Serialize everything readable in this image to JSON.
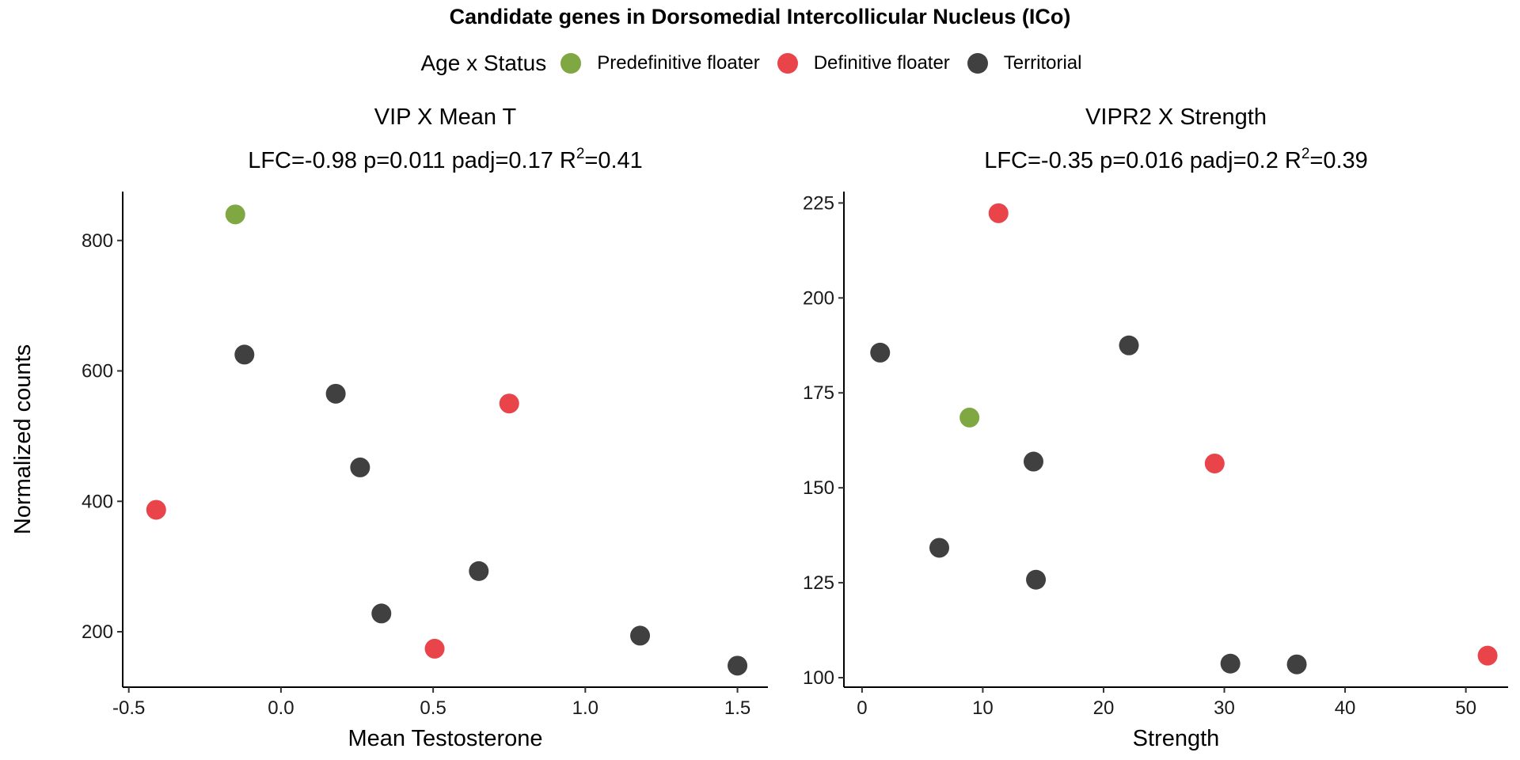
{
  "title": "Candidate genes in Dorsomedial Intercollicular Nucleus (ICo)",
  "legend": {
    "title": "Age x Status",
    "position": "top",
    "items": [
      {
        "label": "Predefinitive floater",
        "color": "#7FA843"
      },
      {
        "label": "Definitive floater",
        "color": "#E8444A"
      },
      {
        "label": "Territorial",
        "color": "#404040"
      }
    ]
  },
  "chart_data": [
    {
      "type": "scatter",
      "title": "VIP X Mean T",
      "subtitle_parts": [
        "LFC=-0.98 p=0.011 padj=0.17 R",
        "2",
        "=0.41"
      ],
      "xlabel": "Mean Testosterone",
      "ylabel": "Normalized counts",
      "xlim": [
        -0.52,
        1.6
      ],
      "ylim": [
        115,
        875
      ],
      "xticks": [
        -0.5,
        0.0,
        0.5,
        1.0,
        1.5
      ],
      "xtick_labels": [
        "-0.5",
        "0.0",
        "0.5",
        "1.0",
        "1.5"
      ],
      "yticks": [
        200,
        400,
        600,
        800
      ],
      "ytick_labels": [
        "200",
        "400",
        "600",
        "800"
      ],
      "grid": false,
      "points": [
        {
          "x": -0.15,
          "y": 840,
          "group": "Predefinitive floater"
        },
        {
          "x": -0.12,
          "y": 625,
          "group": "Territorial"
        },
        {
          "x": 0.18,
          "y": 565,
          "group": "Territorial"
        },
        {
          "x": 0.26,
          "y": 452,
          "group": "Territorial"
        },
        {
          "x": 0.75,
          "y": 550,
          "group": "Definitive floater"
        },
        {
          "x": -0.41,
          "y": 387,
          "group": "Definitive floater"
        },
        {
          "x": 0.65,
          "y": 293,
          "group": "Territorial"
        },
        {
          "x": 0.33,
          "y": 228,
          "group": "Territorial"
        },
        {
          "x": 0.505,
          "y": 174,
          "group": "Definitive floater"
        },
        {
          "x": 1.18,
          "y": 194,
          "group": "Territorial"
        },
        {
          "x": 1.5,
          "y": 148,
          "group": "Territorial"
        }
      ]
    },
    {
      "type": "scatter",
      "title": "VIPR2 X Strength",
      "subtitle_parts": [
        "LFC=-0.35 p=0.016 padj=0.2 R",
        "2",
        "=0.39"
      ],
      "xlabel": "Strength",
      "ylabel": "",
      "xlim": [
        -1.5,
        53.5
      ],
      "ylim": [
        97.5,
        228
      ],
      "xticks": [
        0,
        10,
        20,
        30,
        40,
        50
      ],
      "xtick_labels": [
        "0",
        "10",
        "20",
        "30",
        "40",
        "50"
      ],
      "yticks": [
        100,
        125,
        150,
        175,
        200,
        225
      ],
      "ytick_labels": [
        "100",
        "125",
        "150",
        "175",
        "200",
        "225"
      ],
      "grid": false,
      "points": [
        {
          "x": 11.3,
          "y": 222.3,
          "group": "Definitive floater"
        },
        {
          "x": 1.5,
          "y": 185.6,
          "group": "Territorial"
        },
        {
          "x": 22.1,
          "y": 187.5,
          "group": "Territorial"
        },
        {
          "x": 8.9,
          "y": 168.5,
          "group": "Predefinitive floater"
        },
        {
          "x": 14.2,
          "y": 156.9,
          "group": "Territorial"
        },
        {
          "x": 29.2,
          "y": 156.4,
          "group": "Definitive floater"
        },
        {
          "x": 6.4,
          "y": 134.2,
          "group": "Territorial"
        },
        {
          "x": 14.4,
          "y": 125.8,
          "group": "Territorial"
        },
        {
          "x": 30.5,
          "y": 103.7,
          "group": "Territorial"
        },
        {
          "x": 36.0,
          "y": 103.5,
          "group": "Territorial"
        },
        {
          "x": 51.8,
          "y": 105.8,
          "group": "Definitive floater"
        }
      ]
    }
  ]
}
